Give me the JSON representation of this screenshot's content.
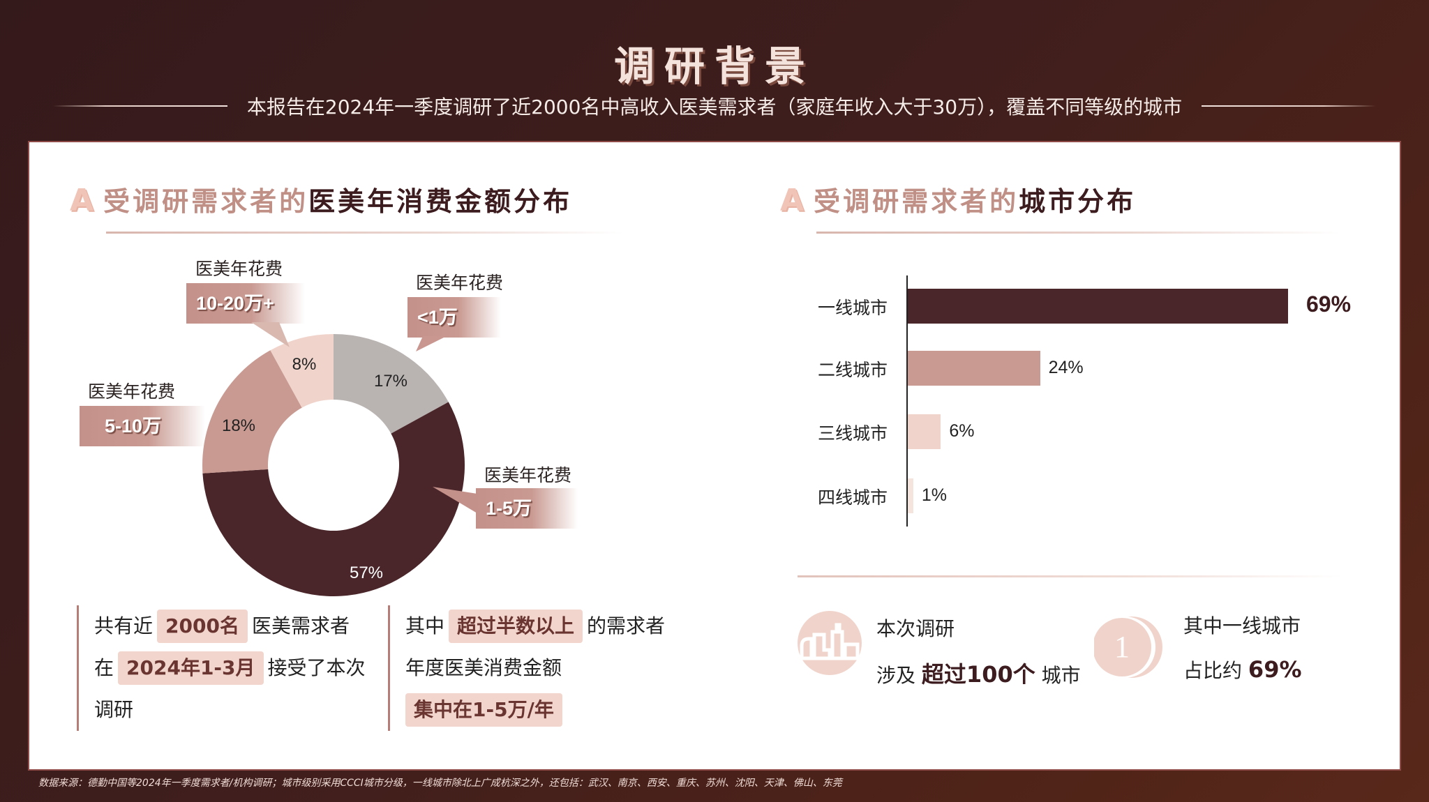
{
  "header": {
    "title": "调研背景",
    "subtitle": "本报告在2024年一季度调研了近2000名中高收入医美需求者（家庭年收入大于30万），覆盖不同等级的城市"
  },
  "left_section": {
    "title_mark": "A",
    "title_muted": "受调研需求者的",
    "title_strong": "医美年消费金额分布",
    "callouts": [
      {
        "caption": "医美年花费",
        "value": "<1万"
      },
      {
        "caption": "医美年花费",
        "value": "1-5万"
      },
      {
        "caption": "医美年花费",
        "value": "5-10万"
      },
      {
        "caption": "医美年花费",
        "value": "10-20万+"
      }
    ],
    "summary_left": {
      "line1_pre": "共有近",
      "line1_hl": "2000名",
      "line1_post": "医美需求者",
      "line2_pre": "在",
      "line2_hl": "2024年1-3月",
      "line2_post": "接受了本次",
      "line3": "调研"
    },
    "summary_right": {
      "line1_pre": "其中",
      "line1_hl": "超过半数以上",
      "line1_post": "的需求者",
      "line2": "年度医美消费金额",
      "line3_hl": "集中在1-5万/年"
    }
  },
  "right_section": {
    "title_mark": "A",
    "title_muted": "受调研需求者的",
    "title_strong": "城市分布",
    "stat1": {
      "line1": "本次调研",
      "line2_pre": "涉及",
      "line2_bold": "超过100个",
      "line2_post": "城市",
      "icon": "city-skyline-icon"
    },
    "stat2": {
      "line1": "其中一线城市",
      "line2_pre": "占比约",
      "line2_bold": "69%",
      "icon": "number-one-coin-icon",
      "icon_glyph": "1"
    }
  },
  "chart_data": [
    {
      "type": "pie",
      "variant": "donut",
      "title": "受调研需求者的医美年消费金额分布",
      "categories": [
        "<1万",
        "1-5万",
        "5-10万",
        "10-20万+"
      ],
      "values": [
        17,
        57,
        18,
        8
      ],
      "labels": [
        "17%",
        "57%",
        "18%",
        "8%"
      ],
      "colors": [
        "#b9b3b2",
        "#4a262a",
        "#c99a92",
        "#f0d4cb"
      ],
      "start_angle": "12 o'clock, clockwise"
    },
    {
      "type": "bar",
      "orientation": "horizontal",
      "title": "受调研需求者的城市分布",
      "categories": [
        "一线城市",
        "二线城市",
        "三线城市",
        "四线城市"
      ],
      "values": [
        69,
        24,
        6,
        1
      ],
      "labels": [
        "69%",
        "24%",
        "6%",
        "1%"
      ],
      "colors": [
        "#4a262a",
        "#c99a92",
        "#f0d4cb",
        "#f5e3dd"
      ],
      "xlim": [
        0,
        100
      ],
      "grid": false
    }
  ],
  "footer": {
    "source": "数据来源：德勤中国等2024年一季度需求者/机构调研；城市级别采用CCCI城市分级，一线城市除北上广成杭深之外，还包括：武汉、南京、西安、重庆、苏州、沈阳、天津、佛山、东莞"
  }
}
